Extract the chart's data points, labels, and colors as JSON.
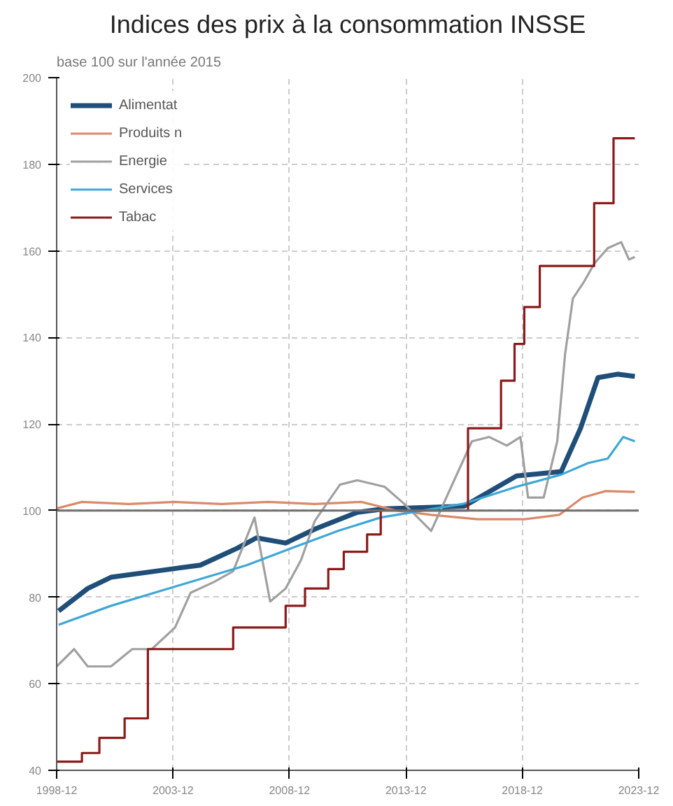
{
  "chart_data": {
    "type": "line",
    "title": "Indices des prix à la consommation INSSE",
    "annotations": [
      "base 100 sur l'année 2015"
    ],
    "xlim": [
      "1998-12",
      "2023-12"
    ],
    "xticks": [
      "1998-12",
      "2003-12",
      "2008-12",
      "2013-12",
      "2018-12",
      "2023-12"
    ],
    "ylim": [
      40,
      200
    ],
    "yticks": [
      40,
      60,
      80,
      100,
      120,
      140,
      160,
      180,
      200
    ],
    "grid": true,
    "legend": "top left",
    "ref_lines": [
      {
        "axis": "y",
        "value": 100,
        "color": "#707070"
      }
    ],
    "series": [
      {
        "name": "Alimentat",
        "color": "#1f4e79",
        "x": [
          "1999-01",
          "2000-04",
          "2001-04",
          "2003-03",
          "2005-02",
          "2006-09",
          "2007-07",
          "2008-10",
          "2010-01",
          "2011-11",
          "2013-01",
          "2016-06",
          "2018-09",
          "2020-08",
          "2021-06",
          "2022-03",
          "2023-01",
          "2023-10"
        ],
        "values": [
          76.8,
          82,
          84.6,
          86,
          87.4,
          91.3,
          93.7,
          92.5,
          95.7,
          99.6,
          100.4,
          101,
          108,
          109,
          119,
          130.7,
          131.5,
          131
        ]
      },
      {
        "name": "Produits n",
        "color": "#d98a6a",
        "x": [
          "1998-12",
          "2000-01",
          "2002-01",
          "2004-01",
          "2006-01",
          "2008-01",
          "2010-01",
          "2012-01",
          "2013-07",
          "2015-01",
          "2017-01",
          "2019-01",
          "2020-07",
          "2021-07",
          "2022-07",
          "2023-10"
        ],
        "values": [
          100.5,
          102,
          101.5,
          102,
          101.5,
          102,
          101.5,
          102,
          100,
          99,
          98,
          98,
          99,
          103,
          104.5,
          104.3
        ]
      },
      {
        "name": "Energie",
        "color": "#a0a0a0",
        "x": [
          "1998-12",
          "1999-09",
          "2000-04",
          "2001-04",
          "2002-03",
          "2003-01",
          "2004-01",
          "2004-09",
          "2005-09",
          "2006-07",
          "2007-06",
          "2007-10",
          "2008-02",
          "2008-10",
          "2009-06",
          "2010-01",
          "2011-02",
          "2011-11",
          "2013-01",
          "2013-11",
          "2015-01",
          "2016-10",
          "2017-07",
          "2018-04",
          "2018-11",
          "2019-03",
          "2019-11",
          "2020-06",
          "2020-10",
          "2021-02",
          "2021-08",
          "2022-01",
          "2022-08",
          "2023-03",
          "2023-07",
          "2023-10"
        ],
        "values": [
          64,
          68,
          64,
          64,
          68,
          68,
          73,
          81,
          83.5,
          86,
          98.4,
          88.6,
          79,
          82,
          88.6,
          97.6,
          106,
          107,
          105.5,
          101.6,
          95.3,
          116,
          117,
          115,
          117,
          103,
          103,
          116,
          136,
          149,
          153,
          157,
          160.6,
          162,
          158,
          158.6
        ]
      },
      {
        "name": "Services",
        "color": "#3fa7d6",
        "x": [
          "1999-01",
          "2001-04",
          "2004-03",
          "2007-02",
          "2009-01",
          "2011-01",
          "2012-11",
          "2016-06",
          "2018-09",
          "2020-08",
          "2021-10",
          "2022-08",
          "2023-04",
          "2023-10"
        ],
        "values": [
          73.6,
          78,
          82.7,
          87.4,
          91.3,
          95.3,
          98.4,
          101.6,
          105.5,
          108.3,
          111,
          112,
          117,
          116
        ]
      },
      {
        "name": "Tabac",
        "color": "#8b1a1a",
        "type": "step",
        "x": [
          "1998-12",
          "2000-01",
          "2000-10",
          "2001-11",
          "2002-11",
          "2006-07",
          "2008-10",
          "2009-08",
          "2010-08",
          "2011-04",
          "2012-04",
          "2012-11",
          "2016-08",
          "2018-01",
          "2018-08",
          "2019-01",
          "2019-09",
          "2022-01",
          "2022-11",
          "2023-10"
        ],
        "values": [
          42,
          44,
          47.5,
          52,
          68,
          73,
          78,
          82,
          86.5,
          90.5,
          94.5,
          100,
          119,
          130,
          138.5,
          147,
          156.5,
          171,
          186,
          186
        ]
      }
    ]
  }
}
